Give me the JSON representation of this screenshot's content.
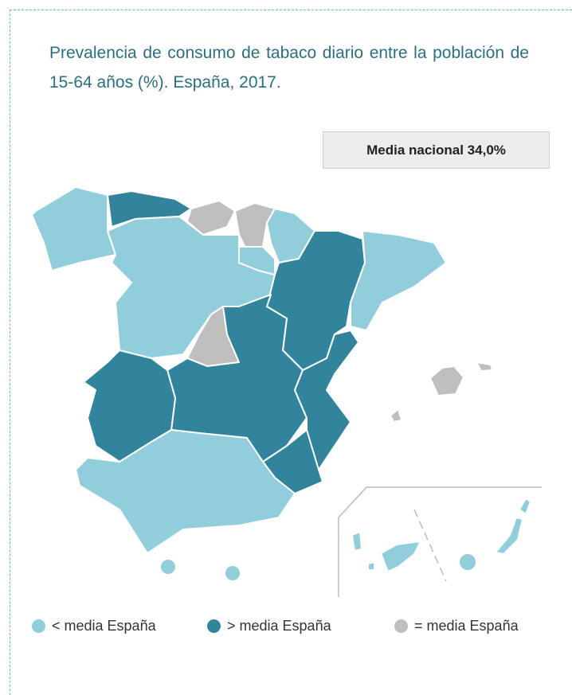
{
  "title": "Prevalencia de consumo de tabaco diario entre la población de 15-64 años (%). España, 2017.",
  "badge": "Media nacional 34,0%",
  "legend": [
    {
      "label": "< media España",
      "color": "#92cddc"
    },
    {
      "label": "> media España",
      "color": "#31849b"
    },
    {
      "label": "= media España",
      "color": "#bfbfbf"
    }
  ]
}
